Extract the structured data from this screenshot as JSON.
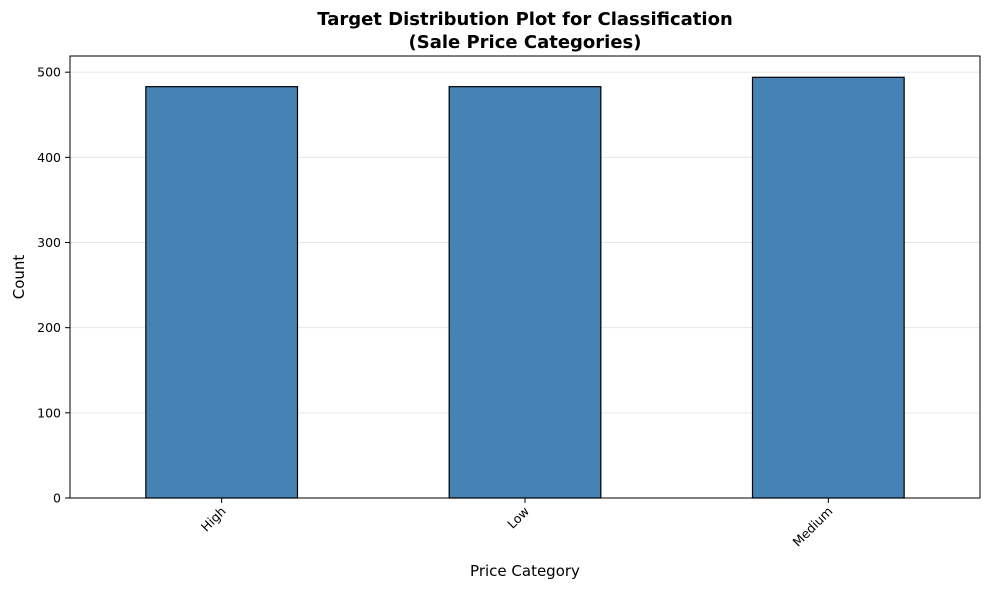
{
  "colors": {
    "bar_fill": "#4682b4",
    "bar_edge": "#000000",
    "grid": "#e6e6e6",
    "axis": "#000000"
  },
  "chart_data": {
    "type": "bar",
    "title_line1": "Target Distribution Plot for Classification",
    "title_line2": "(Sale Price Categories)",
    "xlabel": "Price Category",
    "ylabel": "Count",
    "categories": [
      "High",
      "Low",
      "Medium"
    ],
    "values": [
      483,
      483,
      494
    ],
    "ylim": [
      0,
      519
    ],
    "yticks": [
      0,
      100,
      200,
      300,
      400,
      500
    ],
    "grid": "y-only",
    "legend": "none"
  }
}
